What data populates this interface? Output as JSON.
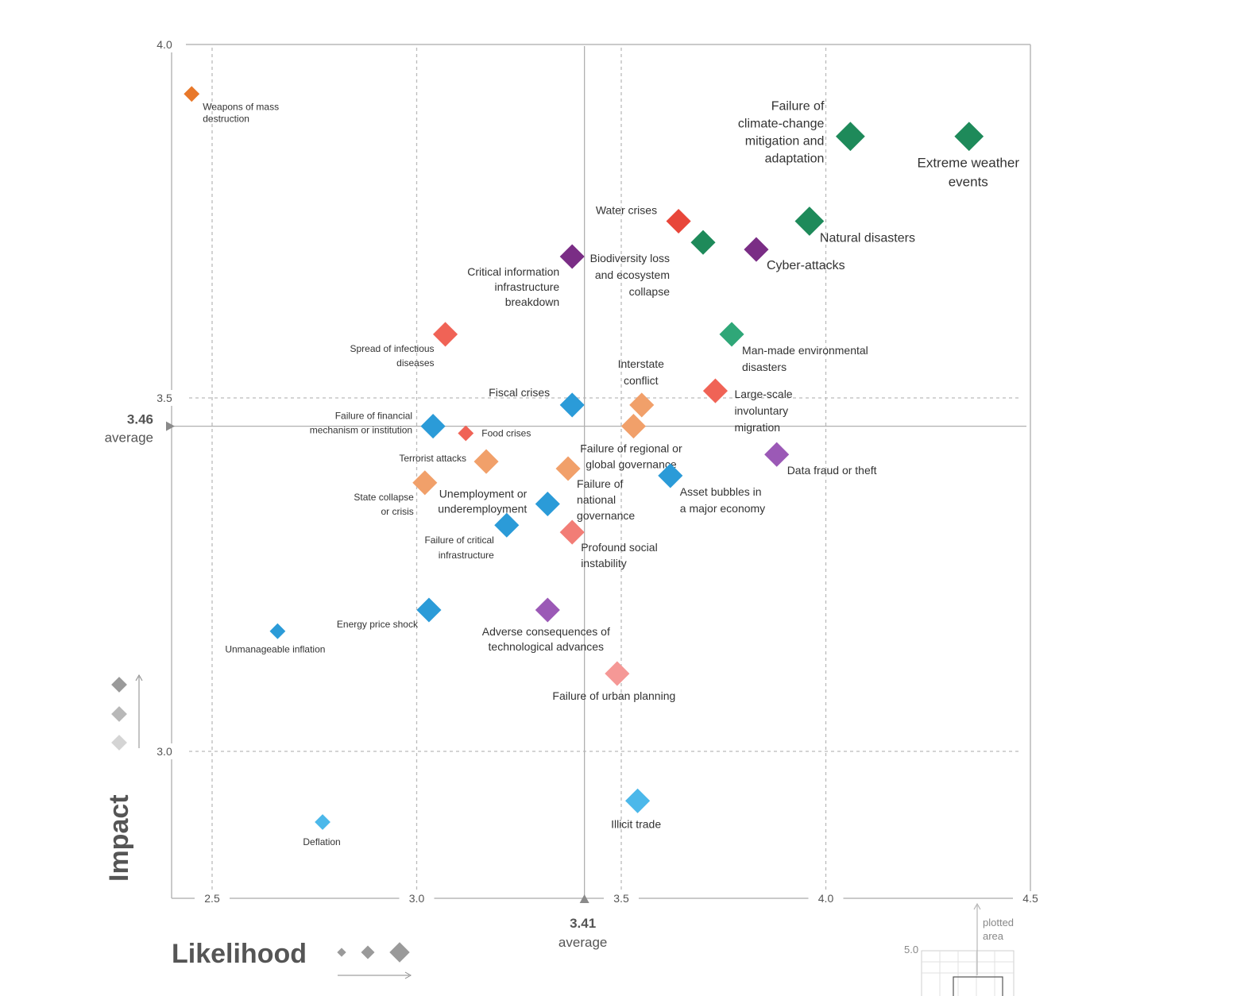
{
  "chart_data": {
    "type": "scatter",
    "xlabel": "Likelihood",
    "ylabel": "Impact",
    "xlim": [
      2.4,
      4.5
    ],
    "ylim": [
      2.8,
      4.0
    ],
    "x_ticks": [
      "2.5",
      "3.0",
      "3.5",
      "4.0",
      "4.5"
    ],
    "y_ticks": [
      "4.0",
      "3.5",
      "3.0"
    ],
    "averages": {
      "x": {
        "value": 3.41,
        "label": "3.41",
        "text": "average"
      },
      "y": {
        "value": 3.46,
        "label": "3.46",
        "text": "average"
      }
    },
    "points": [
      {
        "label": [
          "Weapons of mass",
          "destruction"
        ],
        "x": 2.45,
        "y": 3.93,
        "size": 1,
        "color": "#E8782A"
      },
      {
        "label": [
          "Failure of",
          "climate-change",
          "mitigation and",
          "adaptation"
        ],
        "x": 4.06,
        "y": 3.87,
        "size": 3,
        "color": "#1E8A5A"
      },
      {
        "label": [
          "Extreme weather",
          "events"
        ],
        "x": 4.35,
        "y": 3.87,
        "size": 3,
        "color": "#1E8A5A"
      },
      {
        "label": [
          "Water crises"
        ],
        "x": 3.64,
        "y": 3.75,
        "size": 2,
        "color": "#E8463A"
      },
      {
        "label": [
          "Natural disasters"
        ],
        "x": 3.96,
        "y": 3.75,
        "size": 3,
        "color": "#1E8A5A"
      },
      {
        "label": [
          "Biodiversity loss",
          "and ecosystem",
          "collapse"
        ],
        "x": 3.7,
        "y": 3.72,
        "size": 2,
        "color": "#1E8A5A"
      },
      {
        "label": [
          "Cyber-attacks"
        ],
        "x": 3.83,
        "y": 3.71,
        "size": 2,
        "color": "#7A2D85"
      },
      {
        "label": [
          "Critical information",
          "infrastructure",
          "breakdown"
        ],
        "x": 3.38,
        "y": 3.7,
        "size": 2,
        "color": "#7A2D85"
      },
      {
        "label": [
          "Spread of infectious",
          "diseases"
        ],
        "x": 3.07,
        "y": 3.59,
        "size": 2,
        "color": "#F06356"
      },
      {
        "label": [
          "Man-made environmental",
          "disasters"
        ],
        "x": 3.77,
        "y": 3.59,
        "size": 2,
        "color": "#2FA778"
      },
      {
        "label": [
          "Interstate",
          "conflict"
        ],
        "x": 3.55,
        "y": 3.49,
        "size": 2,
        "color": "#F1A06A"
      },
      {
        "label": [
          "Large-scale",
          "involuntary",
          "migration"
        ],
        "x": 3.73,
        "y": 3.51,
        "size": 2,
        "color": "#F06356"
      },
      {
        "label": [
          "Fiscal crises"
        ],
        "x": 3.38,
        "y": 3.49,
        "size": 2,
        "color": "#2B9BD8"
      },
      {
        "label": [
          "Failure of regional or",
          "global governance"
        ],
        "x": 3.53,
        "y": 3.46,
        "size": 2,
        "color": "#F1A06A"
      },
      {
        "label": [
          "Failure of financial",
          "mechanism or institution"
        ],
        "x": 3.04,
        "y": 3.46,
        "size": 2,
        "color": "#2B9BD8"
      },
      {
        "label": [
          "Food crises"
        ],
        "x": 3.12,
        "y": 3.45,
        "size": 1,
        "color": "#F06356"
      },
      {
        "label": [
          "Data fraud or theft"
        ],
        "x": 3.88,
        "y": 3.42,
        "size": 2,
        "color": "#9B59B6"
      },
      {
        "label": [
          "Terrorist attacks"
        ],
        "x": 3.17,
        "y": 3.41,
        "size": 2,
        "color": "#F1A06A"
      },
      {
        "label": [
          "Failure of",
          "national",
          "governance"
        ],
        "x": 3.37,
        "y": 3.4,
        "size": 2,
        "color": "#F1A06A"
      },
      {
        "label": [
          "Asset bubbles in",
          "a major economy"
        ],
        "x": 3.62,
        "y": 3.39,
        "size": 2,
        "color": "#2B9BD8"
      },
      {
        "label": [
          "State collapse",
          "or crisis"
        ],
        "x": 3.02,
        "y": 3.38,
        "size": 2,
        "color": "#F1A06A"
      },
      {
        "label": [
          "Unemployment or",
          "underemployment"
        ],
        "x": 3.32,
        "y": 3.35,
        "size": 2,
        "color": "#2B9BD8"
      },
      {
        "label": [
          "Failure of critical",
          "infrastructure"
        ],
        "x": 3.22,
        "y": 3.32,
        "size": 2,
        "color": "#2B9BD8"
      },
      {
        "label": [
          "Profound social",
          "instability"
        ],
        "x": 3.38,
        "y": 3.31,
        "size": 2,
        "color": "#F27D76"
      },
      {
        "label": [
          "Energy price shock"
        ],
        "x": 3.03,
        "y": 3.2,
        "size": 2,
        "color": "#2B9BD8"
      },
      {
        "label": [
          "Adverse consequences of",
          "technological advances"
        ],
        "x": 3.32,
        "y": 3.2,
        "size": 2,
        "color": "#9B59B6"
      },
      {
        "label": [
          "Unmanageable inflation"
        ],
        "x": 2.66,
        "y": 3.17,
        "size": 1,
        "color": "#2B9BD8"
      },
      {
        "label": [
          "Failure of urban planning"
        ],
        "x": 3.49,
        "y": 3.11,
        "size": 2,
        "color": "#F59896"
      },
      {
        "label": [
          "Illicit trade"
        ],
        "x": 3.54,
        "y": 2.93,
        "size": 2,
        "color": "#4CB8EA"
      },
      {
        "label": [
          "Deflation"
        ],
        "x": 2.77,
        "y": 2.9,
        "size": 1,
        "color": "#4CB8EA"
      }
    ],
    "legend": {
      "impact_title": "Impact",
      "likelihood_title": "Likelihood",
      "inset_tick": "5.0",
      "inset_label": [
        "plotted",
        "area"
      ]
    }
  }
}
